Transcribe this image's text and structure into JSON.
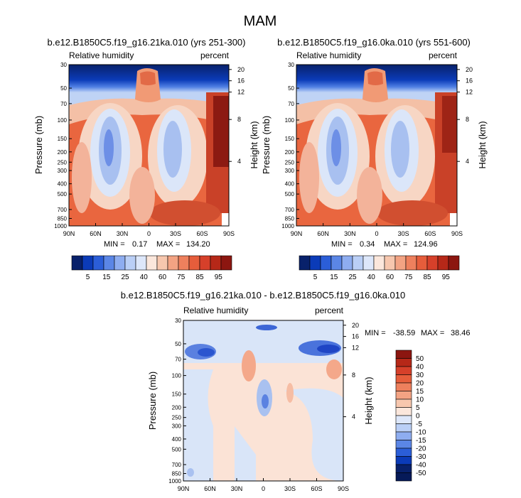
{
  "main_title": "MAM",
  "chart_data": [
    {
      "type": "heatmap",
      "title": "b.e12.B1850C5.f19_g16.21ka.010 (yrs 251-300)",
      "left_label": "Relative humidity",
      "right_label": "percent",
      "ylabel": "Pressure (mb)",
      "y2label": "Height (km)",
      "x_ticks": [
        "90N",
        "60N",
        "30N",
        "0",
        "30S",
        "60S",
        "90S"
      ],
      "y_ticks": [
        "30",
        "50",
        "70",
        "100",
        "150",
        "200",
        "250",
        "300",
        "400",
        "500",
        "700",
        "850",
        "1000"
      ],
      "y2_ticks": [
        "20",
        "16",
        "12",
        "8",
        "4"
      ],
      "min_label": "MIN =",
      "min_value": "0.17",
      "max_label": "MAX =",
      "max_value": "134.20",
      "colorbar": {
        "labels": [
          "5",
          "15",
          "25",
          "40",
          "60",
          "75",
          "85",
          "95"
        ]
      }
    },
    {
      "type": "heatmap",
      "title": "b.e12.B1850C5.f19_g16.0ka.010 (yrs 551-600)",
      "left_label": "Relative humidity",
      "right_label": "percent",
      "ylabel": "Pressure (mb)",
      "y2label": "Height (km)",
      "x_ticks": [
        "90N",
        "60N",
        "30N",
        "0",
        "30S",
        "60S",
        "90S"
      ],
      "y_ticks": [
        "30",
        "50",
        "70",
        "100",
        "150",
        "200",
        "250",
        "300",
        "400",
        "500",
        "700",
        "850",
        "1000"
      ],
      "y2_ticks": [
        "20",
        "16",
        "12",
        "8",
        "4"
      ],
      "min_label": "MIN =",
      "min_value": "0.34",
      "max_label": "MAX =",
      "max_value": "124.96",
      "colorbar": {
        "labels": [
          "5",
          "15",
          "25",
          "40",
          "60",
          "75",
          "85",
          "95"
        ]
      }
    },
    {
      "type": "heatmap",
      "title": "b.e12.B1850C5.f19_g16.21ka.010 - b.e12.B1850C5.f19_g16.0ka.010",
      "left_label": "Relative humidity",
      "right_label": "percent",
      "ylabel": "Pressure (mb)",
      "y2label": "Height (km)",
      "x_ticks": [
        "90N",
        "60N",
        "30N",
        "0",
        "30S",
        "60S",
        "90S"
      ],
      "y_ticks": [
        "30",
        "50",
        "70",
        "100",
        "150",
        "200",
        "250",
        "300",
        "400",
        "500",
        "700",
        "850",
        "1000"
      ],
      "y2_ticks": [
        "20",
        "16",
        "12",
        "8",
        "4"
      ],
      "min_label": "MIN =",
      "min_value": "-38.59",
      "max_label": "MAX =",
      "max_value": "38.46",
      "colorbar": {
        "labels": [
          "50",
          "40",
          "30",
          "20",
          "15",
          "10",
          "5",
          "0",
          "-5",
          "-10",
          "-15",
          "-20",
          "-30",
          "-40",
          "-50"
        ]
      }
    }
  ]
}
